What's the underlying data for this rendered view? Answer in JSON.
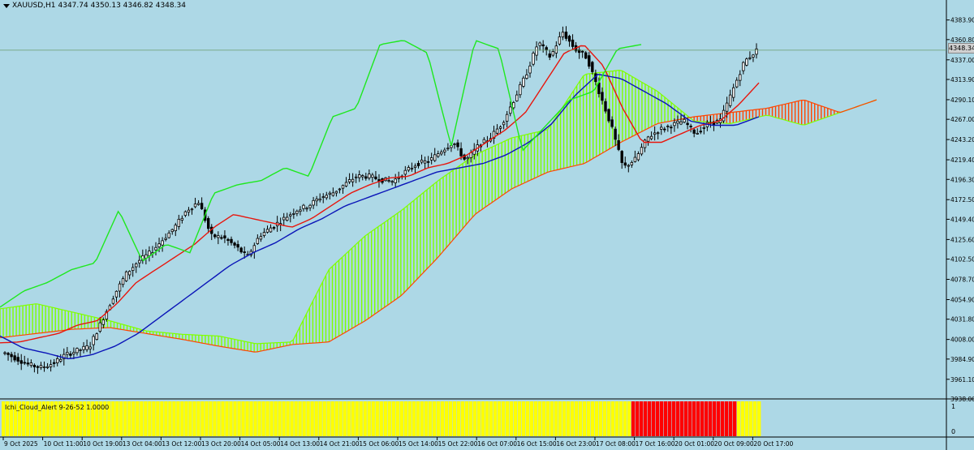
{
  "header": {
    "symbol": "XAUUSD,H1",
    "ohlc": "4347.74 4350.13 4346.82 4348.34"
  },
  "current_price": "4348.34",
  "indicator": {
    "label": "Ichi_Cloud_Alert 9-26-52 1.0000",
    "scale_top": "1",
    "scale_bottom": "0"
  },
  "colors": {
    "background": "#add8e6",
    "tenkan": "#e8150c",
    "kijun": "#0a14b8",
    "chikou": "#1ee81e",
    "cloud_bull": "#7fff00",
    "cloud_bear": "#ff4500",
    "indicator_yellow": "#ffff00",
    "indicator_red": "#ff0000"
  },
  "chart_data": {
    "type": "candlestick",
    "ylim": [
      3938.0,
      4395.0
    ],
    "price_ticks": [
      "4383.90",
      "4360.80",
      "4337.00",
      "4313.90",
      "4290.10",
      "4267.00",
      "4243.20",
      "4219.40",
      "4196.30",
      "4172.50",
      "4149.40",
      "4125.60",
      "4102.50",
      "4078.70",
      "4054.90",
      "4031.80",
      "4008.00",
      "3984.90",
      "3961.10",
      "3938.00"
    ],
    "time_ticks": [
      "9 Oct 2025",
      "10 Oct 11:00",
      "10 Oct 19:00",
      "13 Oct 04:00",
      "13 Oct 12:00",
      "13 Oct 20:00",
      "14 Oct 05:00",
      "14 Oct 13:00",
      "14 Oct 21:00",
      "15 Oct 06:00",
      "15 Oct 14:00",
      "15 Oct 22:00",
      "16 Oct 07:00",
      "16 Oct 15:00",
      "16 Oct 23:00",
      "17 Oct 08:00",
      "17 Oct 16:00",
      "20 Oct 01:00",
      "20 Oct 09:00",
      "20 Oct 17:00"
    ],
    "close_anchors": [
      3992,
      3985,
      3978,
      3975,
      3980,
      3990,
      3995,
      4000,
      4030,
      4060,
      4085,
      4100,
      4110,
      4125,
      4140,
      4160,
      4170,
      4130,
      4128,
      4118,
      4105,
      4130,
      4140,
      4150,
      4160,
      4165,
      4175,
      4180,
      4190,
      4200,
      4200,
      4196,
      4194,
      4205,
      4215,
      4218,
      4230,
      4240,
      4218,
      4235,
      4245,
      4262,
      4290,
      4320,
      4358,
      4340,
      4370,
      4350,
      4340,
      4300,
      4260,
      4210,
      4220,
      4245,
      4255,
      4260,
      4265,
      4250,
      4262,
      4265,
      4300,
      4335,
      4348
    ],
    "series": [
      {
        "name": "Tenkan-sen",
        "anchors": [
          4004,
          4005,
          4010,
          4015,
          4025,
          4030,
          4050,
          4075,
          4090,
          4105,
          4120,
          4140,
          4155,
          4150,
          4145,
          4140,
          4150,
          4165,
          4180,
          4190,
          4198,
          4200,
          4210,
          4215,
          4225,
          4240,
          4255,
          4275,
          4310,
          4345,
          4355,
          4330,
          4280,
          4240,
          4240,
          4250,
          4260,
          4265,
          4285,
          4310
        ]
      },
      {
        "name": "Kijun-sen",
        "anchors": [
          4012,
          3998,
          3992,
          3985,
          3990,
          4000,
          4015,
          4035,
          4055,
          4075,
          4095,
          4110,
          4122,
          4138,
          4150,
          4165,
          4175,
          4185,
          4195,
          4205,
          4210,
          4215,
          4225,
          4240,
          4262,
          4295,
          4320,
          4315,
          4300,
          4285,
          4265,
          4260,
          4260,
          4270
        ]
      },
      {
        "name": "Chikou span",
        "anchors": [
          4046,
          4065,
          4075,
          4090,
          4098,
          4160,
          4100,
          4120,
          4110,
          4180,
          4190,
          4195,
          4210,
          4200,
          4270,
          4280,
          4355,
          4360,
          4345,
          4235,
          4360,
          4350,
          4230,
          4260,
          4290,
          4300,
          4350,
          4355
        ]
      }
    ],
    "cloud": {
      "span_a": [
        4044,
        4050,
        4040,
        4030,
        4018,
        4014,
        4012,
        4003,
        4005,
        4090,
        4130,
        4160,
        4195,
        4225,
        4245,
        4255,
        4320,
        4325,
        4300,
        4265,
        4262,
        4272,
        4260,
        4275,
        4290
      ],
      "span_b": [
        4010,
        4015,
        4020,
        4022,
        4015,
        4008,
        4000,
        3993,
        4002,
        4005,
        4030,
        4060,
        4105,
        4155,
        4185,
        4205,
        4215,
        4240,
        4262,
        4270,
        4275,
        4280,
        4290,
        4275,
        4290
      ]
    },
    "indicator_bars": {
      "yellow_count": 155,
      "red_count": 26,
      "tail_yellow_count": 6
    }
  }
}
